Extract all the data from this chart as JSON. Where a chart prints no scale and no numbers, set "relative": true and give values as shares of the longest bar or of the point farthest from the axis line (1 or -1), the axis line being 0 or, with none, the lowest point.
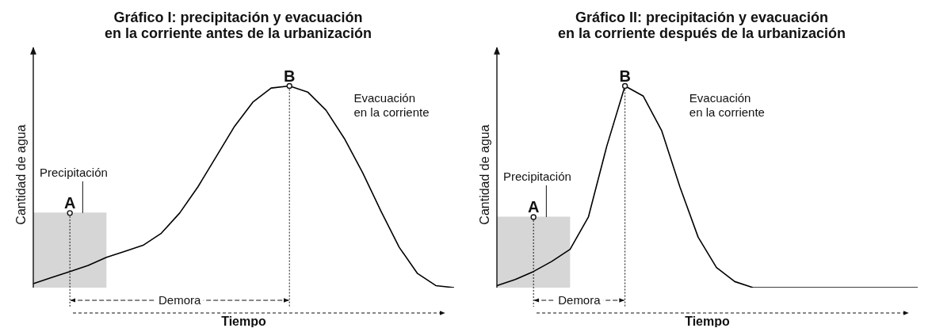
{
  "chart_data": [
    {
      "type": "line",
      "title": "Gráfico I: precipitación y evacuación\nen la corriente antes de la urbanización",
      "xlabel": "Tiempo",
      "ylabel": "Cantidad de agua",
      "relative": true,
      "marker": "none",
      "categories": [
        null,
        null,
        null,
        null,
        null,
        null,
        null,
        null,
        null,
        null,
        null,
        null,
        null,
        null,
        null,
        null,
        null,
        null,
        null,
        null,
        null,
        null,
        null,
        null
      ],
      "series": [
        {
          "name": "Precipitación",
          "type": "area",
          "color": "#d6d6d6",
          "values": [
            0.37,
            0.37,
            0.37,
            0.37,
            0.37,
            null,
            null,
            null,
            null,
            null,
            null,
            null,
            null,
            null,
            null,
            null,
            null,
            null,
            null,
            null,
            null,
            null,
            null,
            null
          ]
        },
        {
          "name": "Evacuación\nen la corriente",
          "color": "#000000",
          "values": [
            0.02,
            0.05,
            0.08,
            0.11,
            0.15,
            0.18,
            0.21,
            0.27,
            0.37,
            0.5,
            0.65,
            0.8,
            0.92,
            0.99,
            1.0,
            0.97,
            0.88,
            0.74,
            0.57,
            0.38,
            0.2,
            0.07,
            0.01,
            0
          ]
        }
      ],
      "annotations": [
        "A",
        "B",
        "Demora"
      ]
    },
    {
      "type": "line",
      "title": "Gráfico II: precipitación y evacuación\nen la corriente después de la urbanización",
      "xlabel": "Tiempo",
      "ylabel": "Cantidad de agua",
      "relative": true,
      "marker": "none",
      "categories": [
        null,
        null,
        null,
        null,
        null,
        null,
        null,
        null,
        null,
        null,
        null,
        null,
        null,
        null,
        null,
        null,
        null,
        null,
        null,
        null,
        null,
        null,
        null,
        null
      ],
      "series": [
        {
          "name": "Precipitación",
          "type": "area",
          "color": "#d6d6d6",
          "values": [
            0.35,
            0.35,
            0.35,
            0.35,
            0.35,
            null,
            null,
            null,
            null,
            null,
            null,
            null,
            null,
            null,
            null,
            null,
            null,
            null,
            null,
            null,
            null,
            null,
            null,
            null
          ]
        },
        {
          "name": "Evacuación\nen la corriente",
          "color": "#000000",
          "values": [
            0.01,
            0.04,
            0.08,
            0.13,
            0.19,
            0.35,
            0.7,
            1.0,
            0.95,
            0.78,
            0.5,
            0.25,
            0.1,
            0.03,
            0,
            0,
            0,
            0,
            0,
            0,
            0,
            0,
            0,
            0
          ]
        }
      ],
      "annotations": [
        "A",
        "B",
        "Demora"
      ]
    }
  ]
}
